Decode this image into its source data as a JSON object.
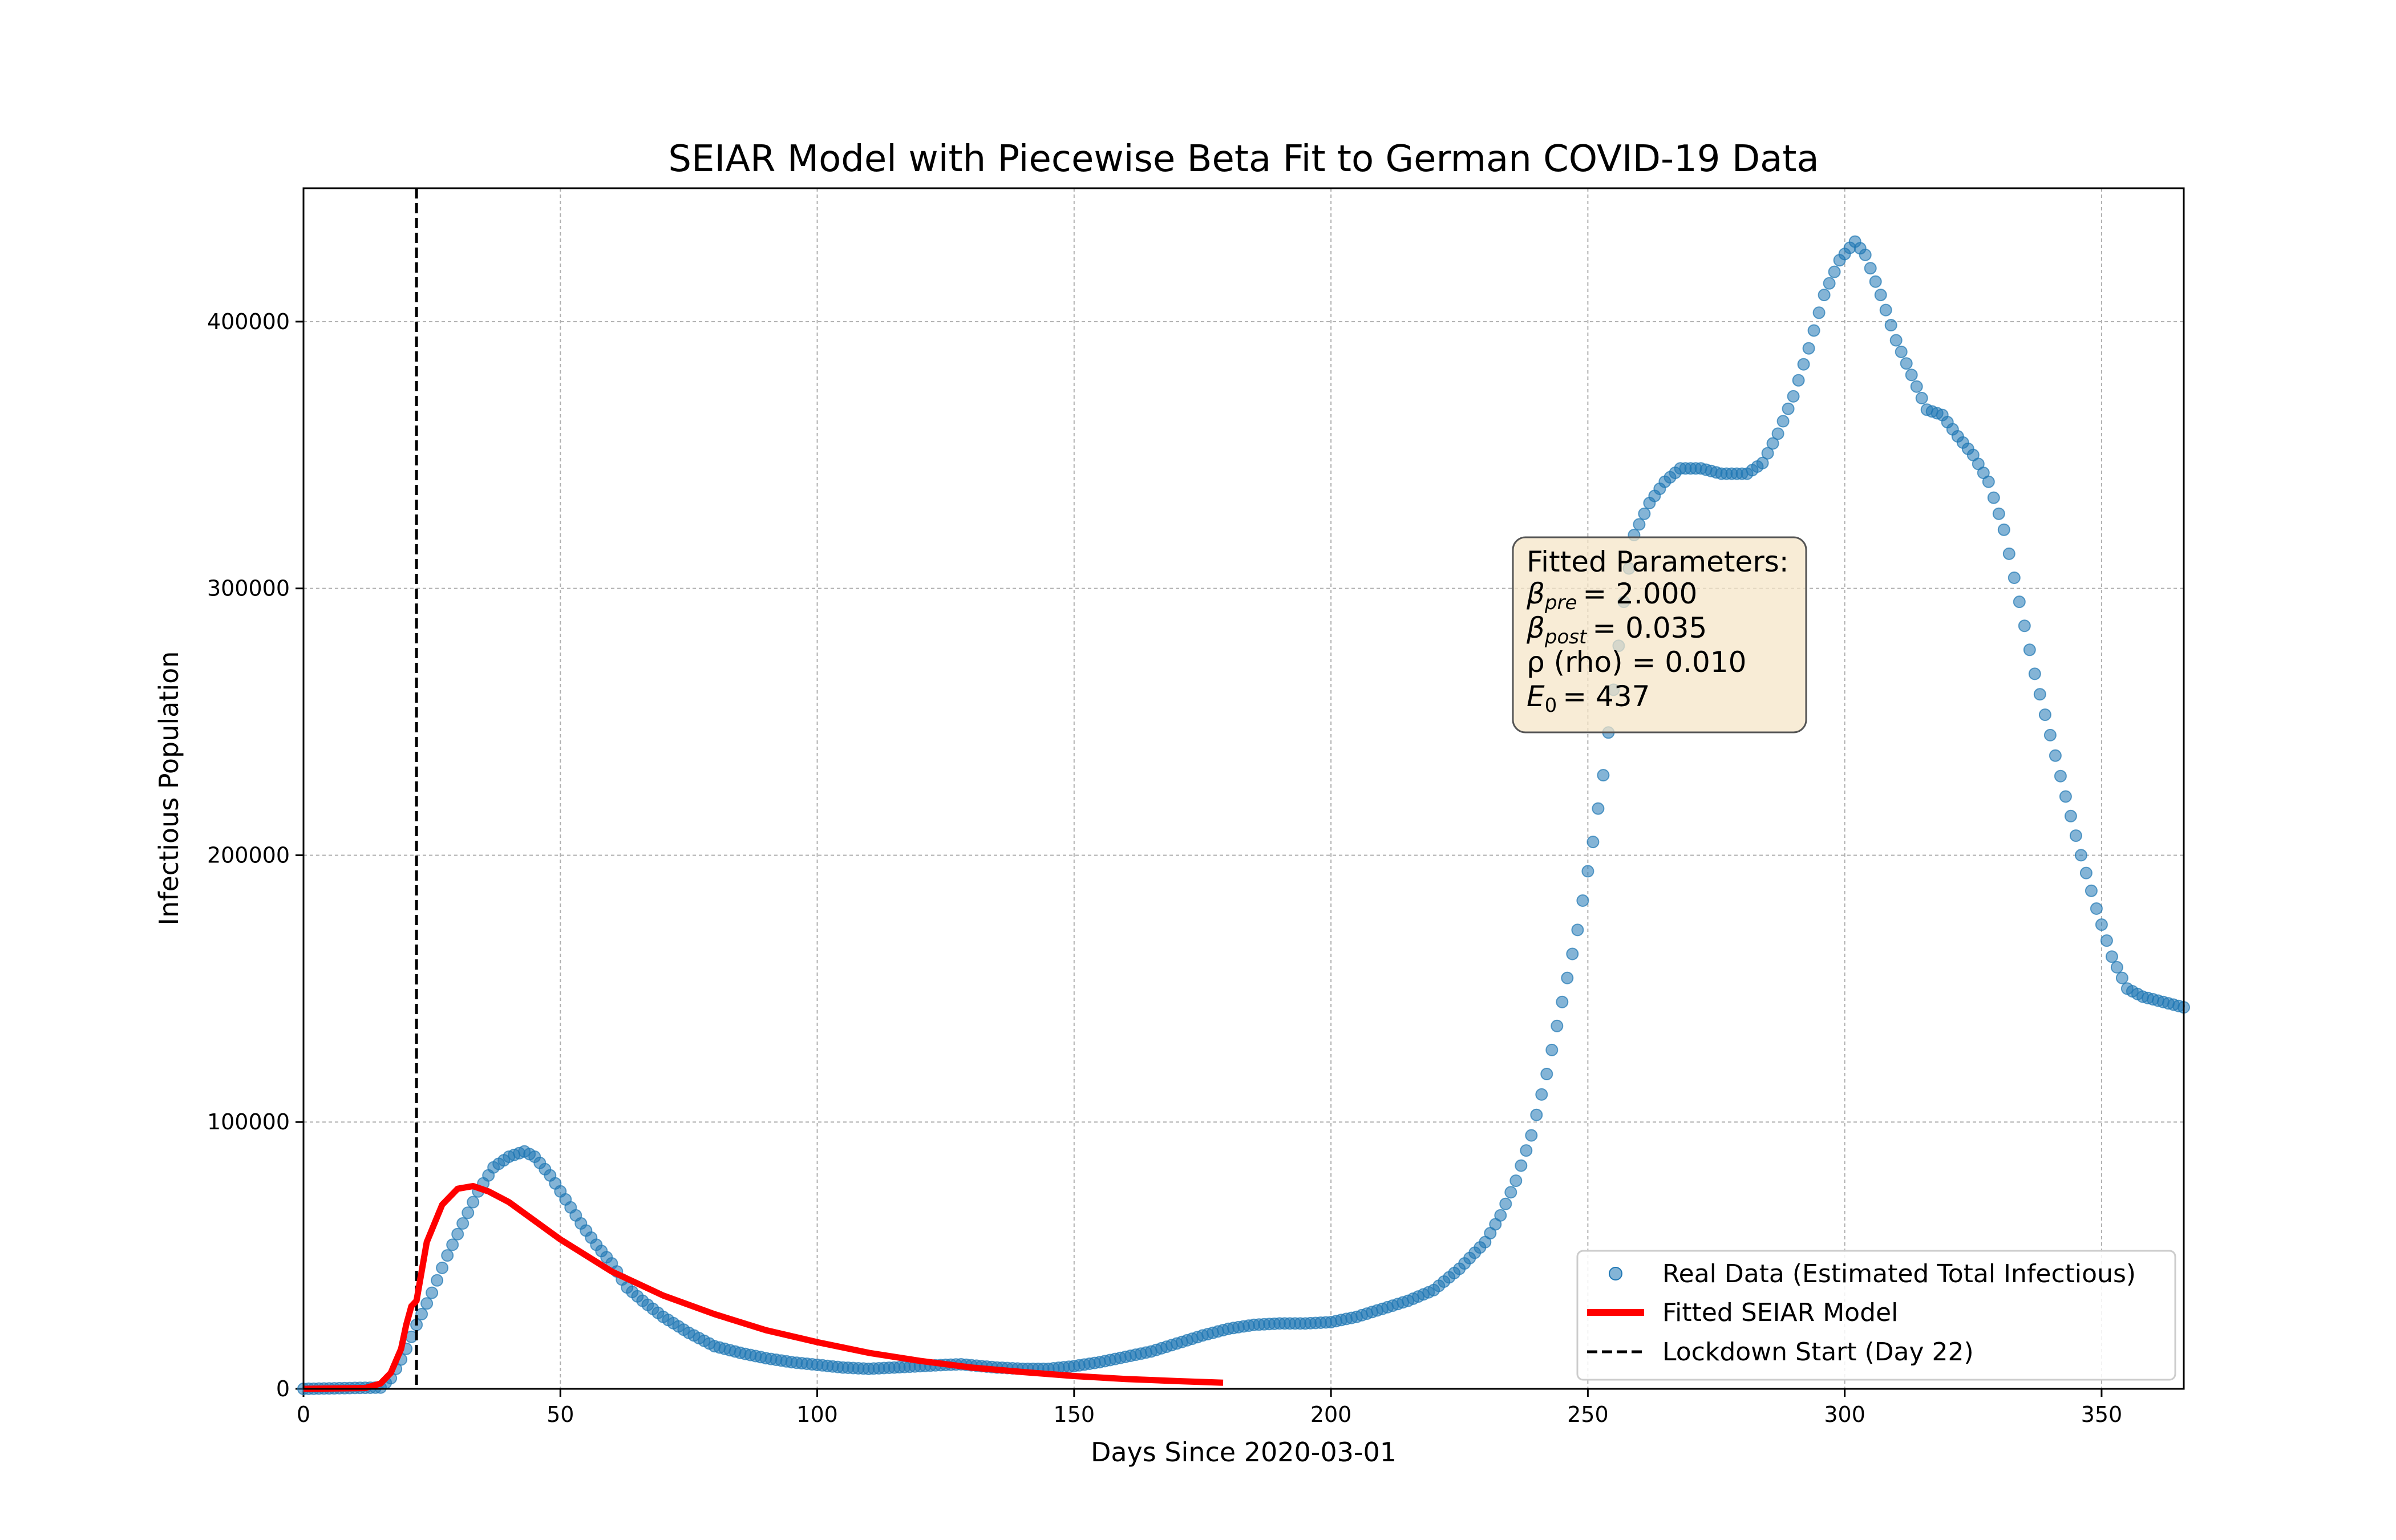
{
  "chart_data": {
    "type": "scatter",
    "title": "SEIAR Model with Piecewise Beta Fit to German COVID-19 Data",
    "xlabel": "Days Since 2020-03-01",
    "ylabel": "Infectious Population",
    "xlim": [
      0,
      366
    ],
    "ylim": [
      0,
      450000
    ],
    "x_ticks": [
      0,
      50,
      100,
      150,
      200,
      250,
      300,
      350
    ],
    "y_ticks": [
      0,
      100000,
      200000,
      300000,
      400000
    ],
    "grid": true,
    "legend_position": "bottom-right",
    "colors": {
      "real": "#1f77b4",
      "model": "#ff0000",
      "lockdown": "#000000"
    },
    "series": [
      {
        "name": "Real Data (Estimated Total Infectious)",
        "type": "scatter",
        "anchors": [
          [
            0,
            0
          ],
          [
            15,
            500
          ],
          [
            17,
            4000
          ],
          [
            19,
            11000
          ],
          [
            20,
            15000
          ],
          [
            22,
            24000
          ],
          [
            25,
            36000
          ],
          [
            28,
            50000
          ],
          [
            31,
            62000
          ],
          [
            34,
            74000
          ],
          [
            37,
            83000
          ],
          [
            40,
            87000
          ],
          [
            43,
            89000
          ],
          [
            45,
            87000
          ],
          [
            48,
            80000
          ],
          [
            51,
            71000
          ],
          [
            54,
            62000
          ],
          [
            57,
            54000
          ],
          [
            60,
            47000
          ],
          [
            63,
            38000
          ],
          [
            66,
            33000
          ],
          [
            70,
            27000
          ],
          [
            75,
            21000
          ],
          [
            80,
            16000
          ],
          [
            85,
            13500
          ],
          [
            90,
            11500
          ],
          [
            95,
            10000
          ],
          [
            100,
            9000
          ],
          [
            105,
            8000
          ],
          [
            110,
            7500
          ],
          [
            115,
            8000
          ],
          [
            120,
            8500
          ],
          [
            125,
            9000
          ],
          [
            128,
            9200
          ],
          [
            135,
            8000
          ],
          [
            140,
            7500
          ],
          [
            145,
            7500
          ],
          [
            150,
            8500
          ],
          [
            155,
            10000
          ],
          [
            160,
            12000
          ],
          [
            165,
            14000
          ],
          [
            170,
            17000
          ],
          [
            175,
            20000
          ],
          [
            180,
            22500
          ],
          [
            185,
            24000
          ],
          [
            190,
            24500
          ],
          [
            195,
            24500
          ],
          [
            200,
            25000
          ],
          [
            205,
            27000
          ],
          [
            210,
            30000
          ],
          [
            215,
            33000
          ],
          [
            220,
            37000
          ],
          [
            225,
            45000
          ],
          [
            230,
            55000
          ],
          [
            233,
            65000
          ],
          [
            236,
            78000
          ],
          [
            239,
            95000
          ],
          [
            242,
            118000
          ],
          [
            245,
            145000
          ],
          [
            248,
            172000
          ],
          [
            251,
            205000
          ],
          [
            253,
            230000
          ],
          [
            255,
            262000
          ],
          [
            257,
            295000
          ],
          [
            259,
            320000
          ],
          [
            262,
            332000
          ],
          [
            265,
            340000
          ],
          [
            268,
            345000
          ],
          [
            272,
            345000
          ],
          [
            276,
            343000
          ],
          [
            281,
            343000
          ],
          [
            284,
            347000
          ],
          [
            287,
            358000
          ],
          [
            290,
            372000
          ],
          [
            293,
            390000
          ],
          [
            296,
            410000
          ],
          [
            299,
            423000
          ],
          [
            302,
            430000
          ],
          [
            304,
            425000
          ],
          [
            307,
            410000
          ],
          [
            310,
            393000
          ],
          [
            313,
            380000
          ],
          [
            316,
            367000
          ],
          [
            319,
            365000
          ],
          [
            322,
            357000
          ],
          [
            325,
            350000
          ],
          [
            328,
            340000
          ],
          [
            331,
            322000
          ],
          [
            334,
            295000
          ],
          [
            337,
            268000
          ],
          [
            340,
            245000
          ],
          [
            343,
            222000
          ],
          [
            346,
            200000
          ],
          [
            349,
            180000
          ],
          [
            352,
            162000
          ],
          [
            355,
            150000
          ],
          [
            358,
            147000
          ],
          [
            362,
            145000
          ],
          [
            366,
            143000
          ]
        ]
      },
      {
        "name": "Fitted SEIAR Model",
        "type": "line",
        "x": [
          0,
          12,
          15,
          17,
          19,
          20,
          21,
          22,
          24,
          27,
          30,
          33,
          36,
          40,
          45,
          50,
          60,
          70,
          80,
          90,
          100,
          110,
          120,
          130,
          140,
          150,
          160,
          170,
          179
        ],
        "values": [
          0,
          300,
          2000,
          6000,
          15000,
          24000,
          31000,
          33000,
          55000,
          69000,
          75000,
          76000,
          74000,
          70000,
          63000,
          56000,
          44000,
          35000,
          28000,
          22000,
          17500,
          13500,
          10500,
          8000,
          6300,
          4800,
          3700,
          2900,
          2300
        ]
      },
      {
        "name": "Lockdown Start (Day 22)",
        "type": "vline",
        "x": 22
      }
    ],
    "annotation": {
      "heading": "Fitted Parameters:",
      "beta_pre_sub": "pre",
      "beta_pre_val": "= 2.000",
      "beta_post_sub": "post",
      "beta_post_val": "= 0.035",
      "rho_label": "ρ (rho) = 0.010",
      "e0_sub": "0",
      "e0_val": "= 437"
    }
  }
}
